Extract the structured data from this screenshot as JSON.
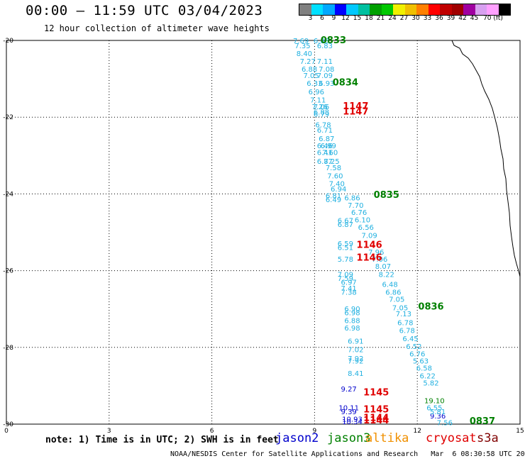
{
  "header": {
    "title": "00:00 – 11:59 UTC 03/04/2023",
    "subtitle": "12 hour collection of altimeter wave heights"
  },
  "colorbar": {
    "labels": [
      "3",
      "6",
      "9",
      "12",
      "15",
      "18",
      "21",
      "24",
      "27",
      "30",
      "33",
      "36",
      "39",
      "42",
      "45",
      "70 (ft)"
    ],
    "colors": [
      "#808080",
      "#00e0ff",
      "#00a8ff",
      "#0000ff",
      "#00c8ff",
      "#00c0a0",
      "#00a000",
      "#00c800",
      "#f0f000",
      "#f0c000",
      "#ff8000",
      "#ff0000",
      "#c00000",
      "#a00000",
      "#a000a0",
      "#d8a0f0",
      "#ffa0ff",
      "#000000"
    ]
  },
  "chart_data": {
    "type": "scatter",
    "title": "00:00 – 11:59 UTC 03/04/2023",
    "subtitle": "12 hour collection of altimeter wave heights",
    "x_ticks": [
      "0",
      "3",
      "6",
      "9",
      "12",
      "15"
    ],
    "y_ticks": [
      "-20",
      "-22",
      "-24",
      "-26",
      "-28",
      "-30"
    ],
    "xlim": [
      0,
      15
    ],
    "ylim": [
      -30,
      -20
    ],
    "grid": true,
    "units": "ft",
    "series": [
      {
        "name": "jason2",
        "color": "#0000cc",
        "points": [
          {
            "x": 10.0,
            "y": -29.08,
            "label": "9.27"
          },
          {
            "x": 10.0,
            "y": -29.57,
            "label": "10.11"
          },
          {
            "x": 10.0,
            "y": -29.67,
            "label": "9.39"
          },
          {
            "x": 10.1,
            "y": -29.86,
            "label": "10.93"
          },
          {
            "x": 10.1,
            "y": -29.93,
            "label": "10.34"
          },
          {
            "x": 12.6,
            "y": -29.78,
            "label": "9.36"
          }
        ]
      },
      {
        "name": "jason3",
        "color": "#008000",
        "points": [
          {
            "x": 12.5,
            "y": -29.38,
            "label": "19.10"
          }
        ]
      },
      {
        "name": "cryosat",
        "color": "#e00000",
        "points": [
          {
            "x": 10.8,
            "y": -29.18,
            "label": "1145"
          },
          {
            "x": 10.8,
            "y": -29.62,
            "label": "1145"
          },
          {
            "x": 10.8,
            "y": -29.84,
            "label": "1144"
          },
          {
            "x": 10.8,
            "y": -29.91,
            "label": "1144"
          }
        ]
      },
      {
        "name": "altimeter",
        "color": "#20b0e0",
        "points": [
          {
            "x": 8.6,
            "y": -20.0,
            "label": "7.69"
          },
          {
            "x": 8.65,
            "y": -20.13,
            "label": "7.35"
          },
          {
            "x": 8.7,
            "y": -20.33,
            "label": "8.40"
          },
          {
            "x": 8.8,
            "y": -20.54,
            "label": "7.27"
          },
          {
            "x": 8.85,
            "y": -20.74,
            "label": "6.88"
          },
          {
            "x": 8.9,
            "y": -20.91,
            "label": "7.05"
          },
          {
            "x": 9.0,
            "y": -21.11,
            "label": "6.33"
          },
          {
            "x": 9.05,
            "y": -21.33,
            "label": "6.96"
          },
          {
            "x": 9.1,
            "y": -21.54,
            "label": "7.11"
          },
          {
            "x": 9.15,
            "y": -21.72,
            "label": "7.26"
          },
          {
            "x": 9.2,
            "y": -21.91,
            "label": "6.79"
          },
          {
            "x": 9.25,
            "y": -22.19,
            "label": "6.78"
          },
          {
            "x": 9.3,
            "y": -22.33,
            "label": "6.71"
          },
          {
            "x": 9.35,
            "y": -22.55,
            "label": "6.87"
          },
          {
            "x": 9.4,
            "y": -22.74,
            "label": "6.99"
          },
          {
            "x": 9.45,
            "y": -22.91,
            "label": "7.60"
          },
          {
            "x": 9.5,
            "y": -23.14,
            "label": "7.25"
          },
          {
            "x": 9.55,
            "y": -23.31,
            "label": "7.58"
          },
          {
            "x": 9.6,
            "y": -23.52,
            "label": "7.60"
          },
          {
            "x": 9.65,
            "y": -23.72,
            "label": "7.40"
          },
          {
            "x": 9.7,
            "y": -23.86,
            "label": "6.94"
          },
          {
            "x": 10.1,
            "y": -24.09,
            "label": "6.86"
          },
          {
            "x": 10.2,
            "y": -24.29,
            "label": "7.70"
          },
          {
            "x": 10.3,
            "y": -24.47,
            "label": "6.76"
          },
          {
            "x": 10.4,
            "y": -24.67,
            "label": "6.10"
          },
          {
            "x": 10.5,
            "y": -24.86,
            "label": "6.56"
          },
          {
            "x": 10.6,
            "y": -25.07,
            "label": "7.09"
          },
          {
            "x": 10.8,
            "y": -25.51,
            "label": "7.96"
          },
          {
            "x": 10.9,
            "y": -25.69,
            "label": "7.06"
          },
          {
            "x": 11.0,
            "y": -25.88,
            "label": "8.07"
          },
          {
            "x": 11.1,
            "y": -26.09,
            "label": "8.22"
          },
          {
            "x": 11.2,
            "y": -26.35,
            "label": "6.48"
          },
          {
            "x": 11.3,
            "y": -26.55,
            "label": "6.86"
          },
          {
            "x": 11.4,
            "y": -26.74,
            "label": "7.05"
          },
          {
            "x": 11.5,
            "y": -26.96,
            "label": "7.05"
          },
          {
            "x": 11.6,
            "y": -27.12,
            "label": "7.13"
          },
          {
            "x": 11.65,
            "y": -27.35,
            "label": "6.78"
          },
          {
            "x": 11.7,
            "y": -27.55,
            "label": "6.78"
          },
          {
            "x": 11.8,
            "y": -27.76,
            "label": "6.45"
          },
          {
            "x": 11.9,
            "y": -27.97,
            "label": "6.52"
          },
          {
            "x": 12.0,
            "y": -28.16,
            "label": "6.76"
          },
          {
            "x": 12.1,
            "y": -28.35,
            "label": "5.63"
          },
          {
            "x": 12.2,
            "y": -28.53,
            "label": "6.58"
          },
          {
            "x": 12.3,
            "y": -28.73,
            "label": "6.22"
          },
          {
            "x": 12.4,
            "y": -28.92,
            "label": "5.82"
          },
          {
            "x": 12.5,
            "y": -29.57,
            "label": "6.55"
          },
          {
            "x": 12.6,
            "y": -29.67,
            "label": "5.81"
          },
          {
            "x": 12.8,
            "y": -29.95,
            "label": "7.56"
          },
          {
            "x": 9.2,
            "y": -20.0,
            "label": "6.88"
          },
          {
            "x": 9.3,
            "y": -20.13,
            "label": "6.83"
          },
          {
            "x": 9.3,
            "y": -20.54,
            "label": "7.11"
          },
          {
            "x": 9.35,
            "y": -20.74,
            "label": "7.08"
          },
          {
            "x": 9.3,
            "y": -20.91,
            "label": "7.09"
          },
          {
            "x": 9.35,
            "y": -21.11,
            "label": "6.93"
          },
          {
            "x": 9.2,
            "y": -21.72,
            "label": "7.06"
          },
          {
            "x": 9.2,
            "y": -21.86,
            "label": "6.88"
          },
          {
            "x": 9.3,
            "y": -22.74,
            "label": "6.46"
          },
          {
            "x": 9.3,
            "y": -22.91,
            "label": "6.41"
          },
          {
            "x": 9.3,
            "y": -23.14,
            "label": "6.87"
          },
          {
            "x": 9.55,
            "y": -24.04,
            "label": "6.81"
          },
          {
            "x": 9.55,
            "y": -24.14,
            "label": "6.49"
          },
          {
            "x": 9.9,
            "y": -24.69,
            "label": "6.67"
          },
          {
            "x": 9.9,
            "y": -24.79,
            "label": "6.87"
          },
          {
            "x": 9.9,
            "y": -25.29,
            "label": "6.59"
          },
          {
            "x": 9.9,
            "y": -25.39,
            "label": "6.51"
          },
          {
            "x": 9.9,
            "y": -25.69,
            "label": "5.78"
          },
          {
            "x": 9.9,
            "y": -26.09,
            "label": "7.09"
          },
          {
            "x": 9.9,
            "y": -26.19,
            "label": "7.59"
          },
          {
            "x": 10.0,
            "y": -26.29,
            "label": "6.97"
          },
          {
            "x": 10.0,
            "y": -26.45,
            "label": "7.41"
          },
          {
            "x": 10.0,
            "y": -26.55,
            "label": "7.38"
          },
          {
            "x": 10.1,
            "y": -26.99,
            "label": "6.90"
          },
          {
            "x": 10.1,
            "y": -27.09,
            "label": "6.98"
          },
          {
            "x": 10.1,
            "y": -27.29,
            "label": "6.88"
          },
          {
            "x": 10.1,
            "y": -27.49,
            "label": "6.98"
          },
          {
            "x": 10.2,
            "y": -27.83,
            "label": "6.91"
          },
          {
            "x": 10.2,
            "y": -28.05,
            "label": "7.02"
          },
          {
            "x": 10.2,
            "y": -28.28,
            "label": "7.92"
          },
          {
            "x": 10.2,
            "y": -28.35,
            "label": "7.92"
          },
          {
            "x": 10.2,
            "y": -28.67,
            "label": "8.41"
          }
        ]
      },
      {
        "name": "times",
        "color": "#008000",
        "points": [
          {
            "x": 9.55,
            "y": -20.0,
            "label": "0833"
          },
          {
            "x": 9.9,
            "y": -21.1,
            "label": "0834"
          },
          {
            "x": 11.1,
            "y": -24.03,
            "label": "0835"
          },
          {
            "x": 12.4,
            "y": -26.94,
            "label": "0836"
          },
          {
            "x": 13.9,
            "y": -29.93,
            "label": "0837"
          }
        ]
      },
      {
        "name": "cryosat-times",
        "color": "#e00000",
        "points": [
          {
            "x": 10.2,
            "y": -21.72,
            "label": "1147"
          },
          {
            "x": 10.2,
            "y": -21.86,
            "label": "1147"
          },
          {
            "x": 10.6,
            "y": -25.33,
            "label": "1146"
          },
          {
            "x": 10.6,
            "y": -25.67,
            "label": "1146"
          }
        ]
      }
    ]
  },
  "legend": {
    "note": "note: 1) Time is in UTC; 2) SWH is in feet",
    "satellites": [
      {
        "label": "jason2",
        "color": "#0000cc"
      },
      {
        "label": "jason3",
        "color": "#008000"
      },
      {
        "label": "altika",
        "color": "#f09000"
      },
      {
        "label": "cryosat",
        "color": "#e00000"
      },
      {
        "label": "s3a",
        "color": "#800000"
      }
    ]
  },
  "footer": "NOAA/NESDIS Center for Satellite Applications and Research   Mar  6 08:30:58 UTC 2023"
}
